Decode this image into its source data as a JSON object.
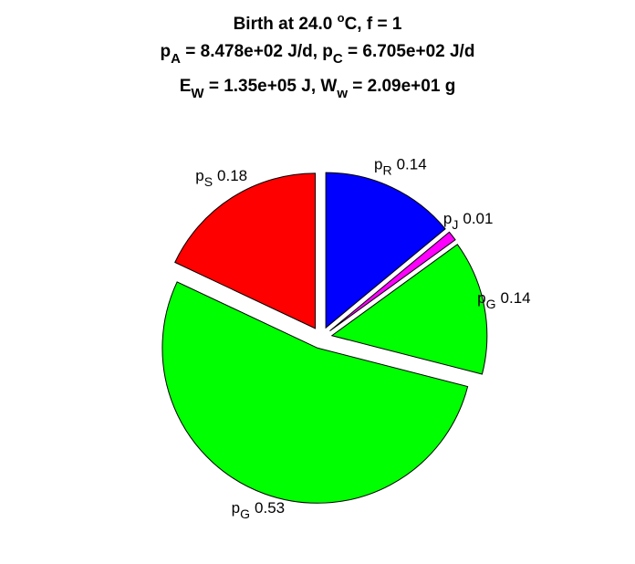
{
  "chart_data": {
    "type": "pie",
    "title": [
      [
        "Birth at 24.0 ",
        "o",
        "C, f = 1"
      ],
      [
        "p",
        "A",
        " = 8.478e+02 J/d, p",
        "C",
        " = 6.705e+02 J/d"
      ],
      [
        "E",
        "W",
        " = 1.35e+05 J, W",
        "w",
        " = 2.09e+01 g"
      ]
    ],
    "categories": [
      [
        "p",
        "R"
      ],
      [
        "p",
        "J"
      ],
      [
        "p",
        "G"
      ],
      [
        "p",
        "G"
      ],
      [
        "p",
        "S"
      ]
    ],
    "values": [
      0.14,
      0.01,
      0.14,
      0.53,
      0.18
    ],
    "colors": [
      "#0000ff",
      "#ff00ff",
      "#00ff00",
      "#00ff00",
      "#ff0000"
    ]
  }
}
